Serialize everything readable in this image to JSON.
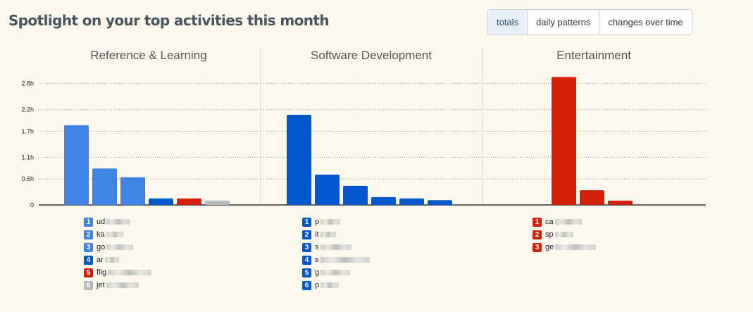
{
  "header": {
    "title": "Spotlight on your top activities this month",
    "tabs": [
      {
        "label": "totals",
        "active": true
      },
      {
        "label": "daily patterns",
        "active": false
      },
      {
        "label": "changes over time",
        "active": false
      }
    ]
  },
  "colors": {
    "reference_blue": "#3f84e5",
    "dev_blue": "#0058cc",
    "entertainment_red": "#d4200a",
    "gray": "#b4b9be"
  },
  "chart_data": {
    "type": "bar",
    "ylim": [
      0,
      3.2
    ],
    "yticks": [
      0,
      0.6,
      1.1,
      1.7,
      2.2,
      2.8
    ],
    "ytick_labels": [
      "0",
      "0.6h",
      "1.1h",
      "1.7h",
      "2.2h",
      "2.8h"
    ],
    "grid": true,
    "groups": [
      {
        "name": "Reference & Learning",
        "values": [
          1.84,
          0.84,
          0.64,
          0.15,
          0.15,
          0.1
        ],
        "colors": [
          "#3f84e5",
          "#3f84e5",
          "#3f84e5",
          "#0058cc",
          "#d4200a",
          "#b4b9be"
        ],
        "legend": [
          {
            "num": "1",
            "label": "ud",
            "color": "#3f84e5"
          },
          {
            "num": "2",
            "label": "ka",
            "color": "#3f84e5"
          },
          {
            "num": "3",
            "label": "go",
            "color": "#3f84e5"
          },
          {
            "num": "4",
            "label": "ar",
            "color": "#0058cc"
          },
          {
            "num": "5",
            "label": "flig",
            "color": "#d4200a"
          },
          {
            "num": "6",
            "label": "jet",
            "color": "#b4b9be"
          }
        ]
      },
      {
        "name": "Software Development",
        "values": [
          2.08,
          0.7,
          0.44,
          0.18,
          0.15,
          0.11
        ],
        "colors": [
          "#0058cc",
          "#0058cc",
          "#0058cc",
          "#0058cc",
          "#0058cc",
          "#0058cc"
        ],
        "legend": [
          {
            "num": "1",
            "label": "p",
            "color": "#0058cc"
          },
          {
            "num": "2",
            "label": "it",
            "color": "#0058cc"
          },
          {
            "num": "3",
            "label": "s",
            "color": "#0058cc"
          },
          {
            "num": "4",
            "label": "s",
            "color": "#0058cc"
          },
          {
            "num": "5",
            "label": "g",
            "color": "#0058cc"
          },
          {
            "num": "6",
            "label": "p",
            "color": "#0058cc"
          }
        ]
      },
      {
        "name": "Entertainment",
        "values": [
          2.95,
          0.34,
          0.1
        ],
        "colors": [
          "#d4200a",
          "#d4200a",
          "#d4200a"
        ],
        "legend": [
          {
            "num": "1",
            "label": "ca",
            "color": "#d4200a"
          },
          {
            "num": "2",
            "label": "sp",
            "color": "#d4200a"
          },
          {
            "num": "3",
            "label": "ge",
            "color": "#d4200a"
          }
        ]
      }
    ]
  }
}
